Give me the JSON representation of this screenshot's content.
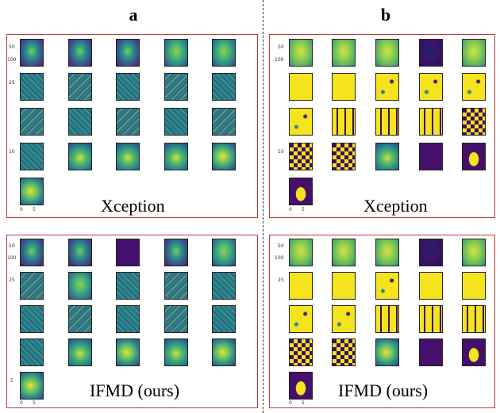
{
  "columns": [
    {
      "letter": "a"
    },
    {
      "letter": "b"
    }
  ],
  "panels": [
    {
      "label": "Xception"
    },
    {
      "label": "IFMD (ours)"
    },
    {
      "label": "Xception"
    },
    {
      "label": "IFMD (ours)"
    }
  ],
  "ticks": {
    "y50": "50",
    "y100": "100",
    "y25": "25",
    "y10": "10",
    "y20": "20",
    "y5": "5",
    "y0": "0",
    "x0": "0",
    "x5": "5",
    "x10": "10",
    "x100": "100"
  }
}
